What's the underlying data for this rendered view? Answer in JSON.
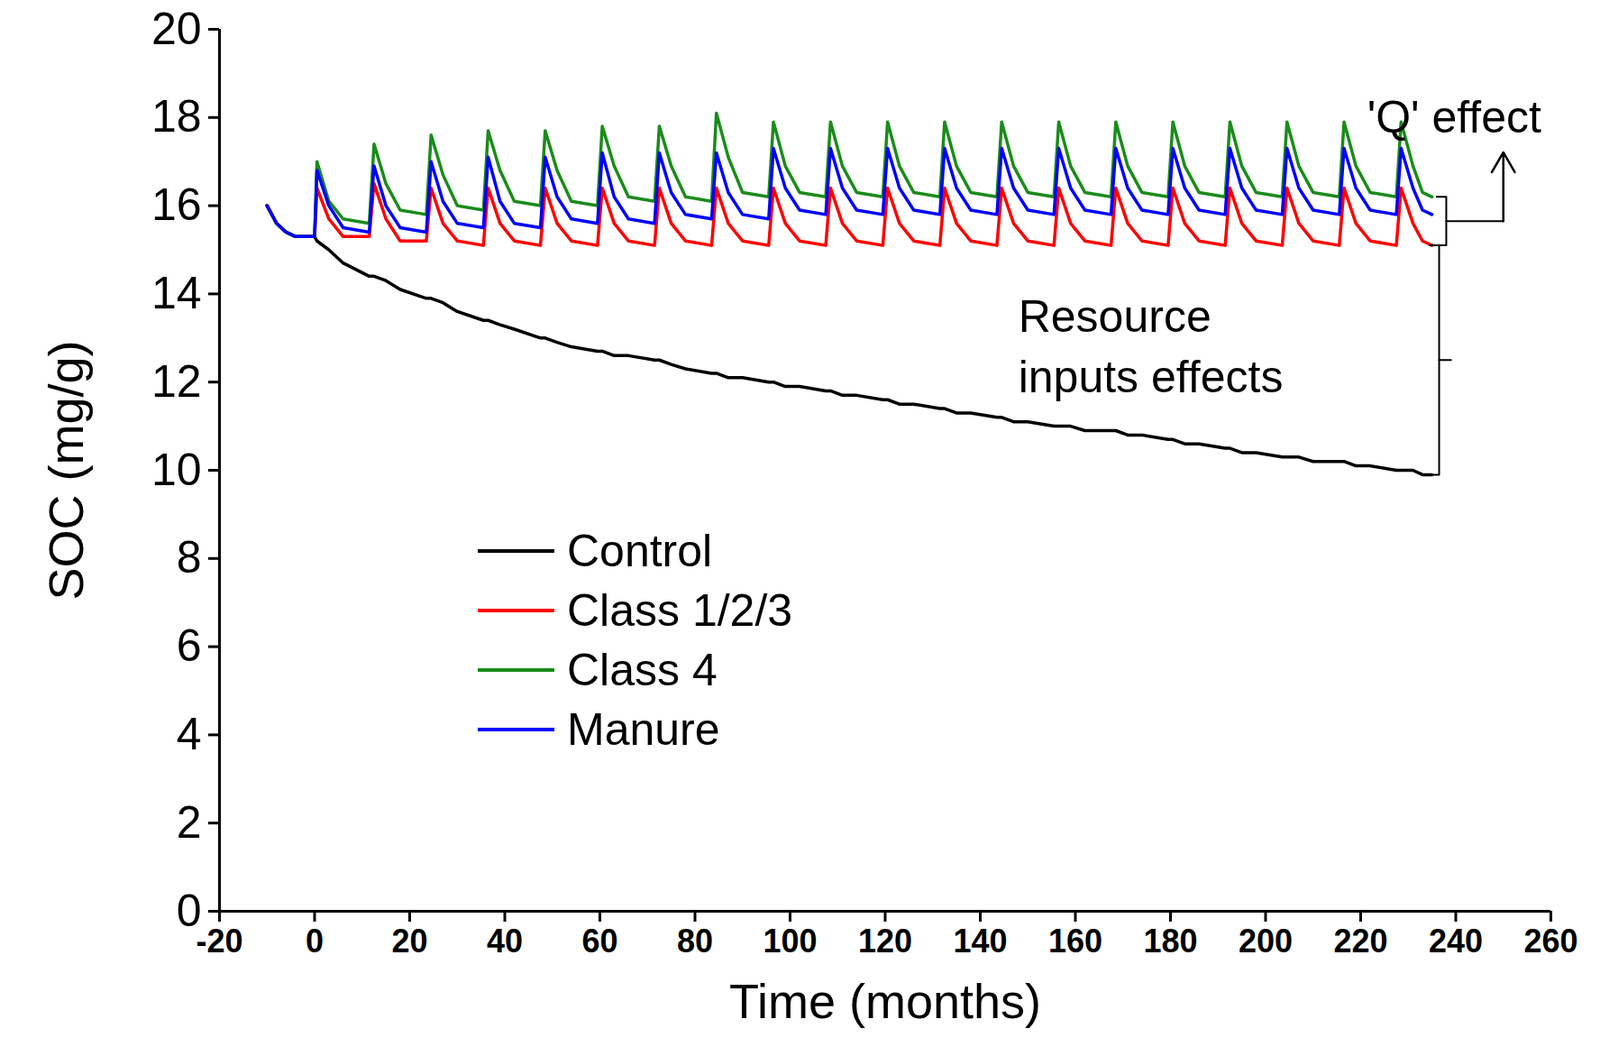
{
  "chart_data": {
    "type": "line",
    "x_label": "Time (months)",
    "y_label": "SOC (mg/g)",
    "xlim": [
      -20,
      260
    ],
    "xticks": [
      -20,
      0,
      20,
      40,
      60,
      80,
      100,
      120,
      140,
      160,
      180,
      200,
      220,
      240,
      260
    ],
    "ylim": [
      0,
      20
    ],
    "yticks": [
      0,
      2,
      4,
      6,
      8,
      10,
      12,
      14,
      16,
      18,
      20
    ],
    "grid": false,
    "legend": "left",
    "annotations": [
      {
        "text": "'Q' effect"
      },
      {
        "text": "Resource inputs effects"
      }
    ],
    "x": [
      -10,
      -8,
      -6,
      -4,
      -2,
      0,
      0.5,
      3,
      6,
      11.5,
      12.5,
      15,
      18,
      23.5,
      24.5,
      27,
      30,
      35.5,
      36.5,
      39,
      42,
      47.5,
      48.5,
      51,
      54,
      59.5,
      60.5,
      63,
      66,
      71.5,
      72.5,
      75,
      78,
      83.5,
      84.5,
      87,
      90,
      95.5,
      96.5,
      99,
      102,
      107.5,
      108.5,
      111,
      114,
      119.5,
      120.5,
      123,
      126,
      131.5,
      132.5,
      135,
      138,
      143.5,
      144.5,
      147,
      150,
      155.5,
      156.5,
      159,
      162,
      167.5,
      168.5,
      171,
      174,
      179.5,
      180.5,
      183,
      186,
      191.5,
      192.5,
      195,
      198,
      203.5,
      204.5,
      207,
      210,
      215.5,
      216.5,
      219,
      222,
      227.5,
      228.5,
      231,
      233,
      235
    ],
    "series": [
      {
        "name": "Control",
        "color": "#000000",
        "values": [
          16.0,
          15.6,
          15.4,
          15.3,
          15.3,
          15.3,
          15.2,
          15.0,
          14.7,
          14.4,
          14.4,
          14.3,
          14.1,
          13.9,
          13.9,
          13.8,
          13.6,
          13.4,
          13.4,
          13.3,
          13.2,
          13.0,
          13.0,
          12.9,
          12.8,
          12.7,
          12.7,
          12.6,
          12.6,
          12.5,
          12.5,
          12.4,
          12.3,
          12.2,
          12.2,
          12.1,
          12.1,
          12.0,
          12.0,
          11.9,
          11.9,
          11.8,
          11.8,
          11.7,
          11.7,
          11.6,
          11.6,
          11.5,
          11.5,
          11.4,
          11.4,
          11.3,
          11.3,
          11.2,
          11.2,
          11.1,
          11.1,
          11.0,
          11.0,
          11.0,
          10.9,
          10.9,
          10.9,
          10.8,
          10.8,
          10.7,
          10.7,
          10.6,
          10.6,
          10.5,
          10.5,
          10.4,
          10.4,
          10.3,
          10.3,
          10.3,
          10.2,
          10.2,
          10.2,
          10.1,
          10.1,
          10.0,
          10.0,
          10.0,
          9.9,
          9.9
        ]
      },
      {
        "name": "Class 1/2/3",
        "color": "#ff0000",
        "values": [
          16.0,
          15.6,
          15.4,
          15.3,
          15.3,
          15.3,
          16.4,
          15.7,
          15.3,
          15.3,
          16.5,
          15.7,
          15.2,
          15.2,
          16.4,
          15.6,
          15.2,
          15.1,
          16.4,
          15.6,
          15.2,
          15.1,
          16.4,
          15.6,
          15.2,
          15.1,
          16.4,
          15.6,
          15.2,
          15.1,
          16.4,
          15.6,
          15.2,
          15.1,
          16.4,
          15.6,
          15.2,
          15.1,
          16.4,
          15.6,
          15.2,
          15.1,
          16.4,
          15.6,
          15.2,
          15.1,
          16.4,
          15.6,
          15.2,
          15.1,
          16.4,
          15.6,
          15.2,
          15.1,
          16.4,
          15.6,
          15.2,
          15.1,
          16.4,
          15.6,
          15.2,
          15.1,
          16.4,
          15.6,
          15.2,
          15.1,
          16.4,
          15.6,
          15.2,
          15.1,
          16.4,
          15.6,
          15.2,
          15.1,
          16.4,
          15.6,
          15.2,
          15.1,
          16.4,
          15.6,
          15.2,
          15.1,
          16.4,
          15.6,
          15.2,
          15.1
        ]
      },
      {
        "name": "Class 4",
        "color": "#1a8c1a",
        "values": [
          16.0,
          15.6,
          15.4,
          15.3,
          15.3,
          15.3,
          17.0,
          16.1,
          15.7,
          15.6,
          17.4,
          16.5,
          15.9,
          15.8,
          17.6,
          16.7,
          16.0,
          15.9,
          17.7,
          16.8,
          16.1,
          16.0,
          17.7,
          16.8,
          16.1,
          16.0,
          17.8,
          16.9,
          16.2,
          16.1,
          17.8,
          16.9,
          16.2,
          16.1,
          18.1,
          17.1,
          16.3,
          16.2,
          17.9,
          16.9,
          16.3,
          16.2,
          17.9,
          16.9,
          16.3,
          16.2,
          17.9,
          16.9,
          16.3,
          16.2,
          17.9,
          16.9,
          16.3,
          16.2,
          17.9,
          16.9,
          16.3,
          16.2,
          17.9,
          16.9,
          16.3,
          16.2,
          17.9,
          16.9,
          16.3,
          16.2,
          17.9,
          16.9,
          16.3,
          16.2,
          17.9,
          16.9,
          16.3,
          16.2,
          17.9,
          16.9,
          16.3,
          16.2,
          17.9,
          16.9,
          16.3,
          16.2,
          17.9,
          16.9,
          16.3,
          16.2
        ]
      },
      {
        "name": "Manure",
        "color": "#0000ff",
        "values": [
          16.0,
          15.6,
          15.4,
          15.3,
          15.3,
          15.3,
          16.8,
          16.0,
          15.5,
          15.4,
          16.9,
          16.0,
          15.5,
          15.4,
          17.0,
          16.1,
          15.6,
          15.5,
          17.1,
          16.1,
          15.6,
          15.5,
          17.1,
          16.2,
          15.7,
          15.6,
          17.2,
          16.2,
          15.7,
          15.6,
          17.2,
          16.3,
          15.8,
          15.7,
          17.2,
          16.3,
          15.8,
          15.7,
          17.3,
          16.4,
          15.9,
          15.8,
          17.3,
          16.4,
          15.9,
          15.8,
          17.3,
          16.4,
          15.9,
          15.8,
          17.3,
          16.4,
          15.9,
          15.8,
          17.3,
          16.4,
          15.9,
          15.8,
          17.3,
          16.4,
          15.9,
          15.8,
          17.3,
          16.4,
          15.9,
          15.8,
          17.3,
          16.4,
          15.9,
          15.8,
          17.3,
          16.4,
          15.9,
          15.8,
          17.3,
          16.4,
          15.9,
          15.8,
          17.3,
          16.4,
          15.9,
          15.8,
          17.3,
          16.4,
          15.9,
          15.8
        ]
      }
    ]
  }
}
